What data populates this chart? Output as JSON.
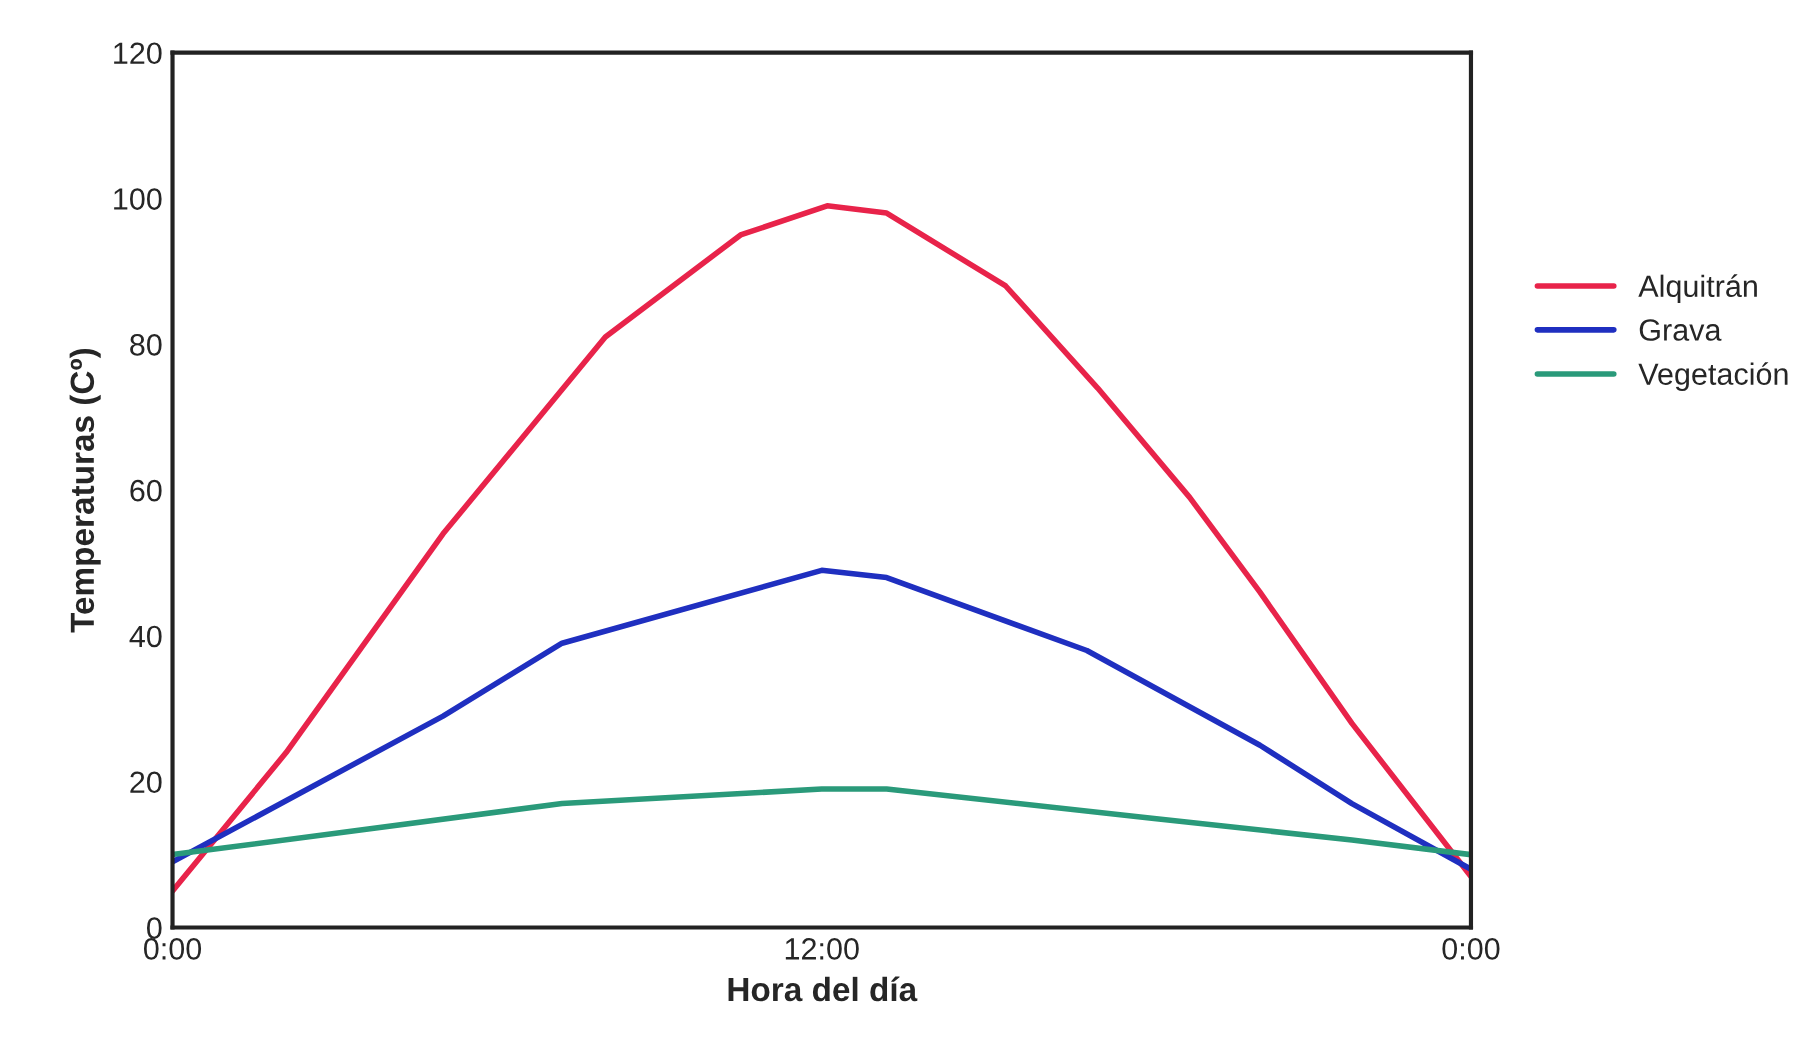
{
  "chart_data": {
    "type": "line",
    "xlabel": "Hora del día",
    "ylabel": "Temperaturas (Cº)",
    "xlim": [
      0,
      24
    ],
    "xticks": [
      {
        "value": 0,
        "label": "0:00"
      },
      {
        "value": 12,
        "label": "12:00"
      },
      {
        "value": 24,
        "label": "0:00"
      }
    ],
    "ylim": [
      0,
      120
    ],
    "yticks": [
      0,
      20,
      40,
      60,
      80,
      100,
      120
    ],
    "grid": false,
    "legend": "right",
    "marker": "none",
    "line_style": "solid",
    "series": [
      {
        "name": "Alquitrán",
        "color": "#e8234a",
        "x": [
          0,
          2.1,
          5,
          8,
          10.5,
          12.1,
          13.2,
          15.4,
          17.1,
          18.8,
          20.1,
          21.8,
          24
        ],
        "values": [
          5,
          24,
          54,
          81,
          95,
          99,
          98,
          88,
          74,
          59,
          46,
          28,
          7
        ]
      },
      {
        "name": "Grava",
        "color": "#1f2fc0",
        "x": [
          0,
          5,
          7.2,
          12,
          13.2,
          16.9,
          20.1,
          21.8,
          24
        ],
        "values": [
          9,
          29,
          39,
          49,
          48,
          38,
          25,
          17,
          8
        ]
      },
      {
        "name": "Vegetación",
        "color": "#2a9a7a",
        "x": [
          0,
          7.2,
          12,
          13.2,
          18.1,
          21.8,
          24
        ],
        "values": [
          10,
          17,
          19,
          19,
          15,
          12,
          10
        ]
      }
    ]
  }
}
